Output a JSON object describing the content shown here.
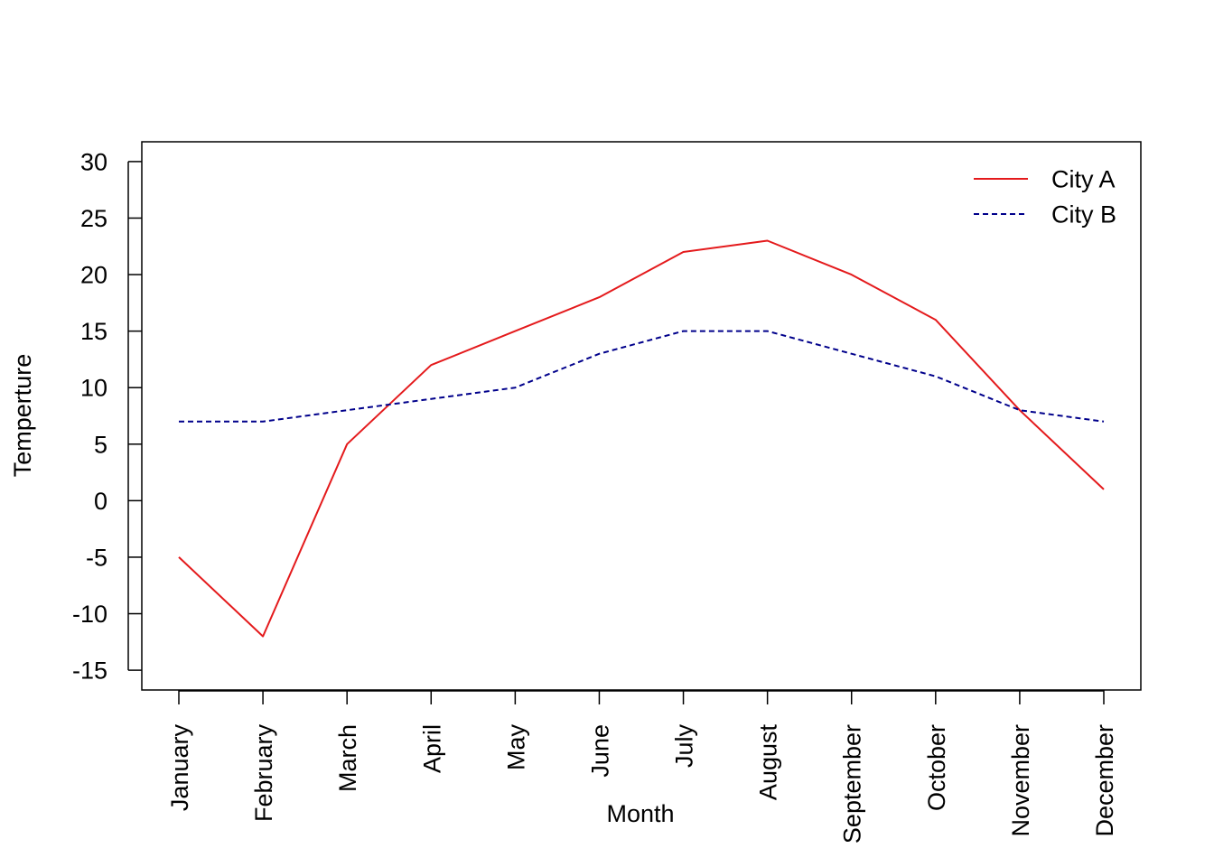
{
  "chart_data": {
    "type": "line",
    "title": "",
    "xlabel": "Month",
    "ylabel": "Temperture",
    "categories": [
      "January",
      "February",
      "March",
      "April",
      "May",
      "June",
      "July",
      "August",
      "September",
      "October",
      "November",
      "December"
    ],
    "series": [
      {
        "name": "City A",
        "color": "#e41a1c",
        "line_style": "solid",
        "values": [
          -5,
          -12,
          5,
          12,
          15,
          18,
          22,
          23,
          20,
          16,
          8,
          1
        ]
      },
      {
        "name": "City B",
        "color": "#00008b",
        "line_style": "dashed",
        "values": [
          7,
          7,
          8,
          9,
          10,
          13,
          15,
          15,
          13,
          11,
          8,
          7
        ]
      }
    ],
    "ylim": [
      -16.75,
      31.75
    ],
    "yticks": [
      -15,
      -10,
      -5,
      0,
      5,
      10,
      15,
      20,
      25,
      30
    ],
    "ytick_labels": [
      "-15",
      "-10",
      "-5",
      "0",
      "5",
      "10",
      "15",
      "20",
      "25",
      "30"
    ],
    "grid": false,
    "legend_position": "top-right"
  }
}
